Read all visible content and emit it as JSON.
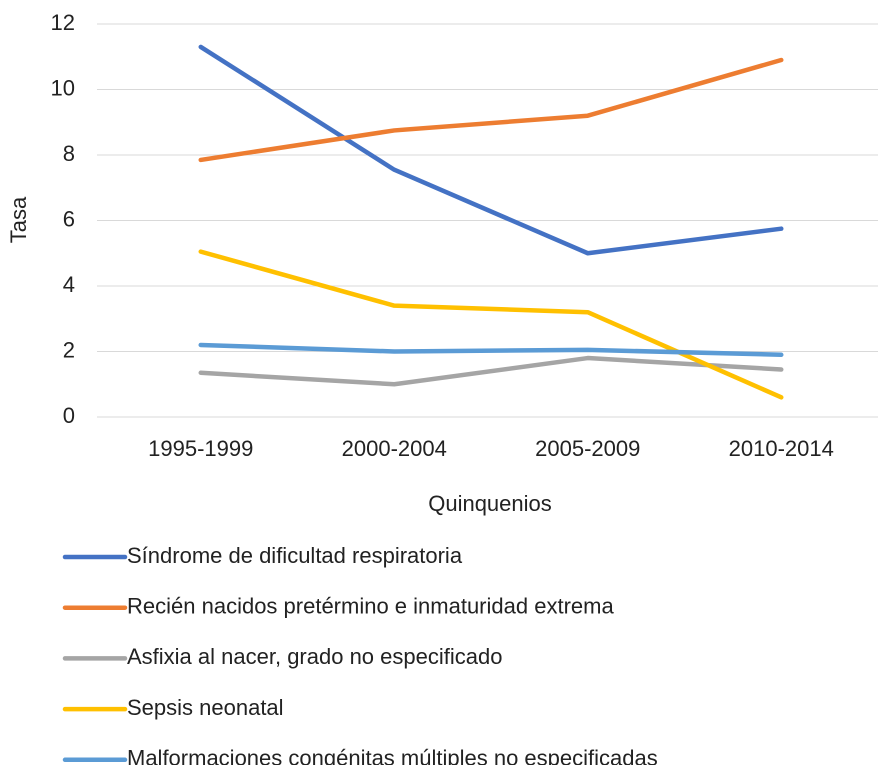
{
  "chart_data": {
    "type": "line",
    "x_label": "Quinquenios",
    "y_label": "Tasa",
    "categories": [
      "1995-1999",
      "2000-2004",
      "2005-2009",
      "2010-2014"
    ],
    "series": [
      {
        "name": "Síndrome de dificultad respiratoria",
        "color": "#4472c4",
        "values": [
          11.3,
          7.55,
          5.0,
          5.75
        ]
      },
      {
        "name": "Recién nacidos pretérmino e inmaturidad extrema",
        "color": "#ed7d31",
        "values": [
          7.85,
          8.75,
          9.2,
          10.9
        ]
      },
      {
        "name": "Asfixia al nacer, grado no especificado",
        "color": "#a5a5a5",
        "values": [
          1.35,
          1.0,
          1.8,
          1.45
        ]
      },
      {
        "name": "Sepsis neonatal",
        "color": "#ffc000",
        "values": [
          5.05,
          3.4,
          3.2,
          0.6
        ]
      },
      {
        "name": "Malformaciones congénitas múltiples no especificadas",
        "color": "#5b9bd5",
        "values": [
          2.2,
          2.0,
          2.05,
          1.9
        ]
      }
    ],
    "ylim": [
      0,
      12
    ],
    "yticks": [
      0,
      2,
      4,
      6,
      8,
      10,
      12
    ],
    "grid": true
  }
}
